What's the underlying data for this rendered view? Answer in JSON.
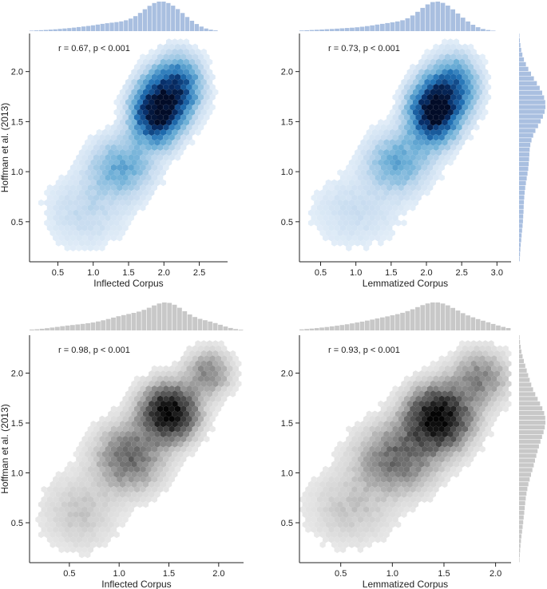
{
  "chart_data": [
    {
      "type": "hexbin",
      "title": "",
      "annotation": "r = 0.67, p < 0.001",
      "xlabel": "Inflected Corpus",
      "ylabel": "Hoffman et al. (2013)",
      "xlim": [
        0.1,
        2.9
      ],
      "ylim": [
        0.1,
        2.38
      ],
      "xticks": [
        0.5,
        1.0,
        1.5,
        2.0,
        2.5
      ],
      "xtick_labels": [
        "0.5",
        "1.0",
        "1.5",
        "2.0",
        "2.5"
      ],
      "yticks": [
        0.5,
        1.0,
        1.5,
        2.0
      ],
      "ytick_labels": [
        "0.5",
        "1.0",
        "1.5",
        "2.0"
      ],
      "colormap": "Blues",
      "hist_color": "#a9bfe0",
      "marginal_x": true,
      "marginal_y": false,
      "density_centers": [
        {
          "x": 1.9,
          "y": 1.6,
          "sx": 0.22,
          "sy": 0.2,
          "w": 1.0
        },
        {
          "x": 2.2,
          "y": 1.85,
          "sx": 0.22,
          "sy": 0.2,
          "w": 0.6
        },
        {
          "x": 1.4,
          "y": 1.05,
          "sx": 0.3,
          "sy": 0.2,
          "w": 0.3
        },
        {
          "x": 0.9,
          "y": 0.6,
          "sx": 0.4,
          "sy": 0.25,
          "w": 0.12
        }
      ]
    },
    {
      "type": "hexbin",
      "title": "",
      "annotation": "r = 0.73, p < 0.001",
      "xlabel": "Lemmatized Corpus",
      "ylabel": "",
      "xlim": [
        0.2,
        3.2
      ],
      "ylim": [
        0.1,
        2.38
      ],
      "xticks": [
        0.5,
        1.0,
        1.5,
        2.0,
        2.5,
        3.0
      ],
      "xtick_labels": [
        "0.5",
        "1.0",
        "1.5",
        "2.0",
        "2.5",
        "3.0"
      ],
      "yticks": [
        0.5,
        1.0,
        1.5,
        2.0
      ],
      "ytick_labels": [
        "0.5",
        "1.0",
        "1.5",
        "2.0"
      ],
      "colormap": "Blues",
      "hist_color": "#a9bfe0",
      "marginal_x": true,
      "marginal_y": true,
      "density_centers": [
        {
          "x": 2.1,
          "y": 1.6,
          "sx": 0.22,
          "sy": 0.2,
          "w": 1.0
        },
        {
          "x": 2.4,
          "y": 1.85,
          "sx": 0.22,
          "sy": 0.2,
          "w": 0.5
        },
        {
          "x": 1.6,
          "y": 1.1,
          "sx": 0.3,
          "sy": 0.2,
          "w": 0.3
        },
        {
          "x": 1.0,
          "y": 0.6,
          "sx": 0.45,
          "sy": 0.25,
          "w": 0.1
        }
      ]
    },
    {
      "type": "hexbin",
      "title": "",
      "annotation": "r = 0.98, p < 0.001",
      "xlabel": "Inflected Corpus",
      "ylabel": "Hoffman et al. (2013)",
      "xlim": [
        0.1,
        2.25
      ],
      "ylim": [
        0.1,
        2.38
      ],
      "xticks": [
        0.5,
        1.0,
        1.5,
        2.0
      ],
      "xtick_labels": [
        "0.5",
        "1.0",
        "1.5",
        "2.0"
      ],
      "yticks": [
        0.5,
        1.0,
        1.5,
        2.0
      ],
      "ytick_labels": [
        "0.5",
        "1.0",
        "1.5",
        "2.0"
      ],
      "colormap": "Greys",
      "hist_color": "#c8c8c8",
      "marginal_x": true,
      "marginal_y": false,
      "density_centers": [
        {
          "x": 1.5,
          "y": 1.6,
          "sx": 0.18,
          "sy": 0.18,
          "w": 1.0
        },
        {
          "x": 1.1,
          "y": 1.15,
          "sx": 0.22,
          "sy": 0.22,
          "w": 0.45
        },
        {
          "x": 0.6,
          "y": 0.6,
          "sx": 0.25,
          "sy": 0.25,
          "w": 0.15
        },
        {
          "x": 1.9,
          "y": 2.0,
          "sx": 0.15,
          "sy": 0.15,
          "w": 0.35
        }
      ]
    },
    {
      "type": "hexbin",
      "title": "",
      "annotation": "r = 0.93, p < 0.001",
      "xlabel": "Lemmatized Corpus",
      "ylabel": "",
      "xlim": [
        0.1,
        2.15
      ],
      "ylim": [
        0.1,
        2.38
      ],
      "xticks": [
        0.5,
        1.0,
        1.5,
        2.0
      ],
      "xtick_labels": [
        "0.5",
        "1.0",
        "1.5",
        "2.0"
      ],
      "yticks": [
        0.5,
        1.0,
        1.5,
        2.0
      ],
      "ytick_labels": [
        "0.5",
        "1.0",
        "1.5",
        "2.0"
      ],
      "colormap": "Greys",
      "hist_color": "#c8c8c8",
      "marginal_x": true,
      "marginal_y": true,
      "density_centers": [
        {
          "x": 1.45,
          "y": 1.55,
          "sx": 0.2,
          "sy": 0.2,
          "w": 1.0
        },
        {
          "x": 1.05,
          "y": 1.15,
          "sx": 0.25,
          "sy": 0.22,
          "w": 0.45
        },
        {
          "x": 0.6,
          "y": 0.65,
          "sx": 0.28,
          "sy": 0.25,
          "w": 0.15
        },
        {
          "x": 1.85,
          "y": 1.95,
          "sx": 0.18,
          "sy": 0.18,
          "w": 0.35
        }
      ]
    }
  ]
}
